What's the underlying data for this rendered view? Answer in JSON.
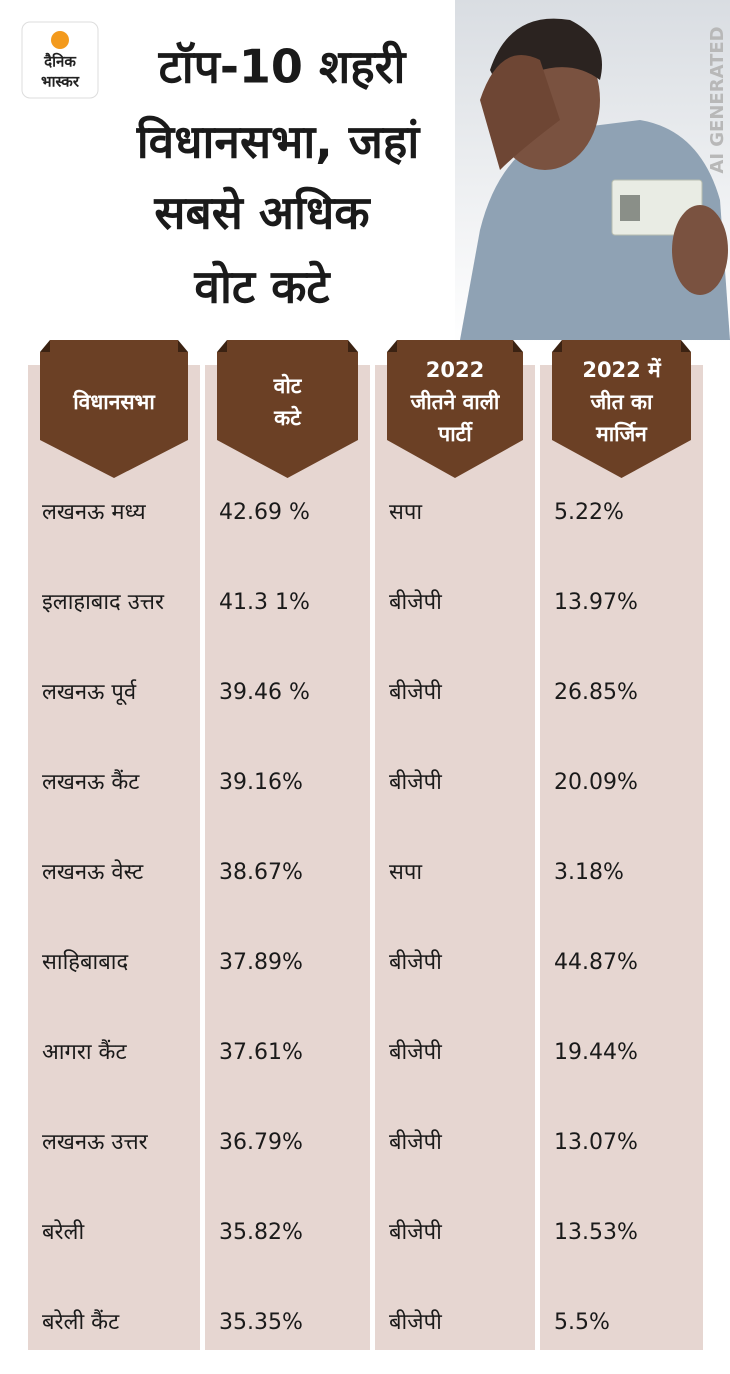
{
  "logo": {
    "line1": "दैनिक",
    "line2": "भास्कर"
  },
  "title": {
    "lines": [
      "टॉप-10 शहरी",
      "विधानसभा, जहां",
      "सबसे अधिक",
      "वोट कटे"
    ]
  },
  "watermark": "AI GENERATED",
  "table": {
    "headers": [
      [
        "विधानसभा"
      ],
      [
        "वोट",
        "कटे"
      ],
      [
        "2022",
        "जीतने वाली",
        "पार्टी"
      ],
      [
        "2022 में",
        "जीत का",
        "मार्जिन"
      ]
    ],
    "rows": [
      [
        "लखनऊ मध्य",
        "42.69 %",
        "सपा",
        "5.22%"
      ],
      [
        "इलाहाबाद उत्तर",
        "41.3 1%",
        "बीजेपी",
        "13.97%"
      ],
      [
        "लखनऊ पूर्व",
        "39.46 %",
        "बीजेपी",
        "26.85%"
      ],
      [
        "लखनऊ कैंट",
        "39.16%",
        "बीजेपी",
        "20.09%"
      ],
      [
        "लखनऊ वेस्ट",
        "38.67%",
        "सपा",
        "3.18%"
      ],
      [
        "साहिबाबाद",
        "37.89%",
        "बीजेपी",
        "44.87%"
      ],
      [
        "आगरा कैंट",
        "37.61%",
        "बीजेपी",
        "19.44%"
      ],
      [
        "लखनऊ उत्तर",
        "36.79%",
        "बीजेपी",
        "13.07%"
      ],
      [
        "बरेली",
        "35.82%",
        "बीजेपी",
        "13.53%"
      ],
      [
        "बरेली कैंट",
        "35.35%",
        "बीजेपी",
        "5.5%"
      ]
    ]
  }
}
